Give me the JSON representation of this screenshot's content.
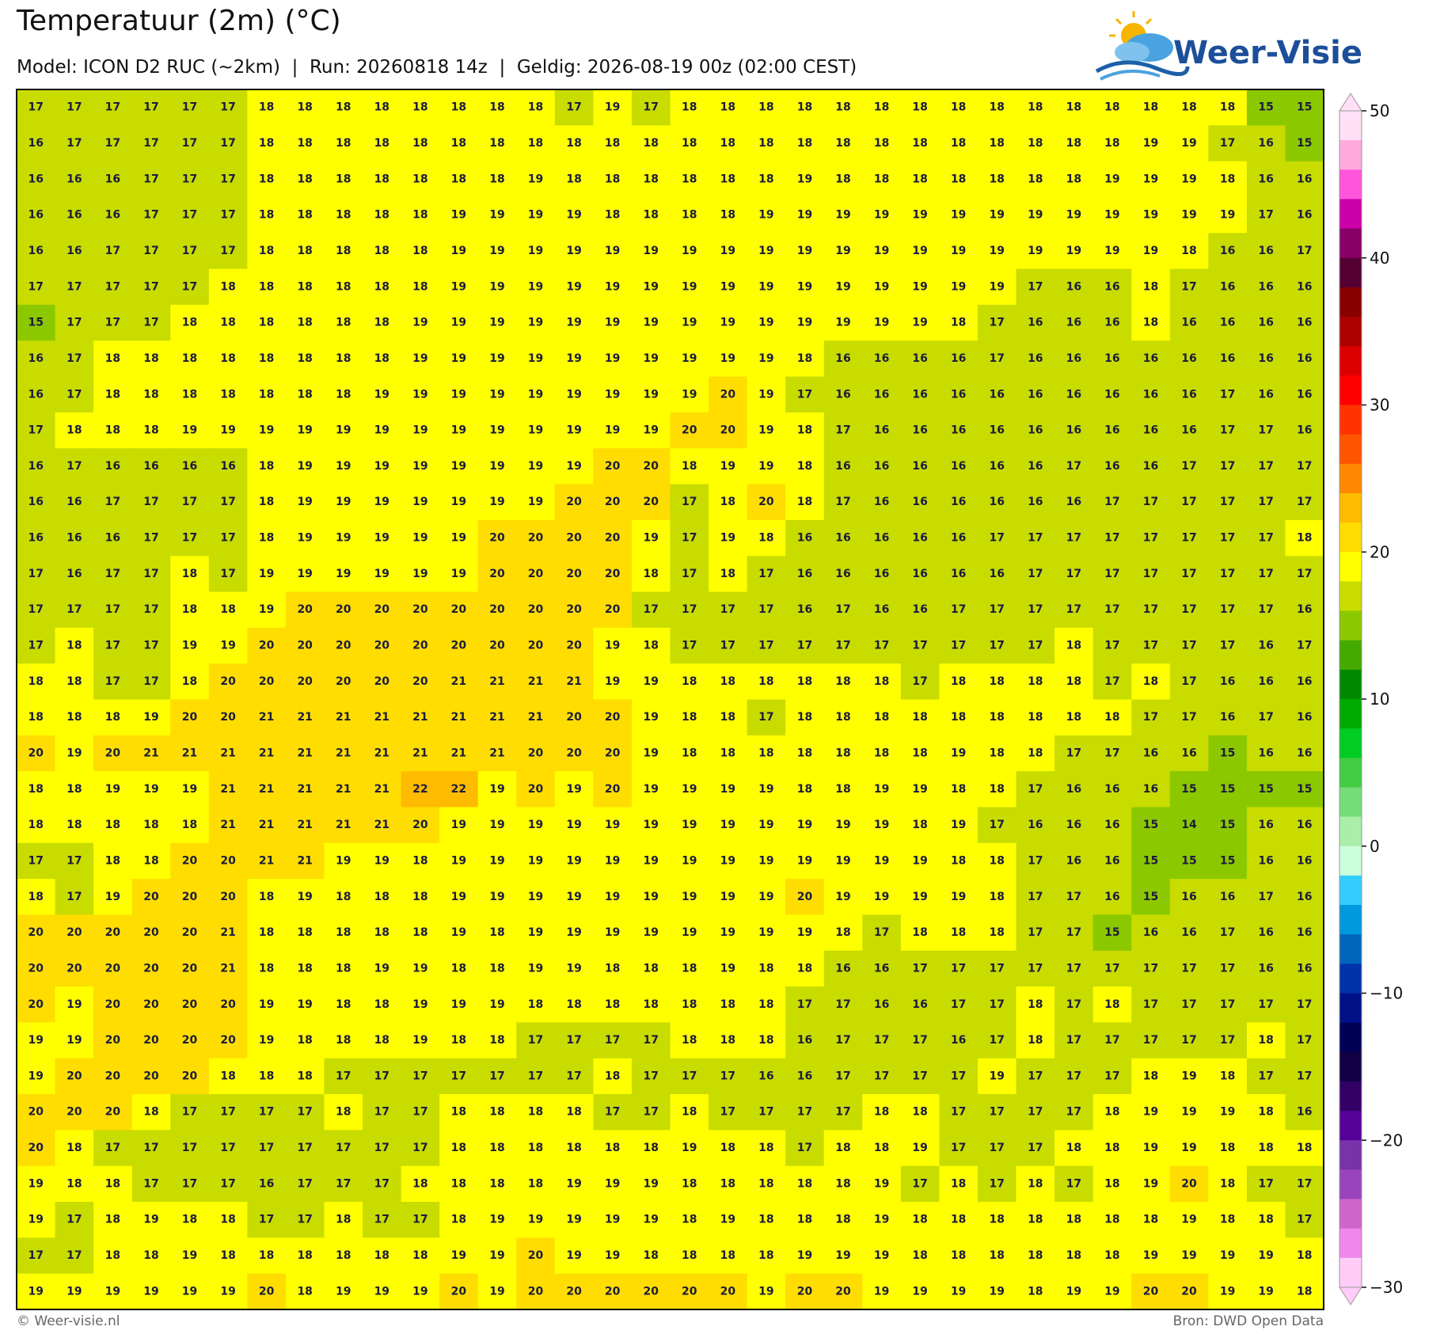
{
  "header": {
    "title": "Temperatuur (2m) (°C)",
    "subtitle": "Model: ICON D2 RUC (~2km)  |  Run: 20260818 14z  |  Geldig: 2026-08-19 00z (02:00 CEST)"
  },
  "logo": {
    "text": "Weer-Visie"
  },
  "grid": {
    "rows": [
      [
        17,
        17,
        17,
        17,
        17,
        17,
        18,
        18,
        18,
        18,
        18,
        18,
        18,
        18,
        17,
        19,
        17,
        18,
        18,
        18,
        18,
        18,
        18,
        18,
        18,
        18,
        18,
        18,
        18,
        18,
        18,
        18,
        15,
        15
      ],
      [
        16,
        17,
        17,
        17,
        17,
        17,
        18,
        18,
        18,
        18,
        18,
        18,
        18,
        18,
        18,
        18,
        18,
        18,
        18,
        18,
        18,
        18,
        18,
        18,
        18,
        18,
        18,
        18,
        18,
        19,
        19,
        17,
        16,
        15
      ],
      [
        16,
        16,
        16,
        17,
        17,
        17,
        18,
        18,
        18,
        18,
        18,
        18,
        18,
        19,
        18,
        18,
        18,
        18,
        18,
        18,
        19,
        18,
        18,
        18,
        18,
        18,
        18,
        18,
        19,
        19,
        19,
        18,
        16,
        16
      ],
      [
        16,
        16,
        16,
        17,
        17,
        17,
        18,
        18,
        18,
        18,
        18,
        19,
        19,
        19,
        19,
        18,
        18,
        18,
        18,
        19,
        19,
        19,
        19,
        19,
        19,
        19,
        19,
        19,
        19,
        19,
        19,
        19,
        17,
        16
      ],
      [
        16,
        16,
        17,
        17,
        17,
        17,
        18,
        18,
        18,
        18,
        18,
        19,
        19,
        19,
        19,
        19,
        19,
        19,
        19,
        19,
        19,
        19,
        19,
        19,
        19,
        19,
        19,
        19,
        19,
        19,
        18,
        16,
        16,
        17
      ],
      [
        17,
        17,
        17,
        17,
        17,
        18,
        18,
        18,
        18,
        18,
        18,
        19,
        19,
        19,
        19,
        19,
        19,
        19,
        19,
        19,
        19,
        19,
        19,
        19,
        19,
        19,
        17,
        16,
        16,
        18,
        17,
        16,
        16,
        16
      ],
      [
        15,
        17,
        17,
        17,
        18,
        18,
        18,
        18,
        18,
        18,
        19,
        19,
        19,
        19,
        19,
        19,
        19,
        19,
        19,
        19,
        19,
        19,
        19,
        19,
        18,
        17,
        16,
        16,
        16,
        18,
        16,
        16,
        16,
        16
      ],
      [
        16,
        17,
        18,
        18,
        18,
        18,
        18,
        18,
        18,
        18,
        19,
        19,
        19,
        19,
        19,
        19,
        19,
        19,
        19,
        19,
        18,
        16,
        16,
        16,
        16,
        17,
        16,
        16,
        16,
        16,
        16,
        16,
        16,
        16
      ],
      [
        16,
        17,
        18,
        18,
        18,
        18,
        18,
        18,
        18,
        19,
        19,
        19,
        19,
        19,
        19,
        19,
        19,
        19,
        20,
        19,
        17,
        16,
        16,
        16,
        16,
        16,
        16,
        16,
        16,
        16,
        16,
        17,
        16,
        16
      ],
      [
        17,
        18,
        18,
        18,
        19,
        19,
        19,
        19,
        19,
        19,
        19,
        19,
        19,
        19,
        19,
        19,
        19,
        20,
        20,
        19,
        18,
        17,
        16,
        16,
        16,
        16,
        16,
        16,
        16,
        16,
        16,
        17,
        17,
        16
      ],
      [
        16,
        17,
        16,
        16,
        16,
        16,
        18,
        19,
        19,
        19,
        19,
        19,
        19,
        19,
        19,
        20,
        20,
        18,
        19,
        19,
        18,
        16,
        16,
        16,
        16,
        16,
        16,
        17,
        16,
        16,
        17,
        17,
        17,
        17
      ],
      [
        16,
        16,
        17,
        17,
        17,
        17,
        18,
        19,
        19,
        19,
        19,
        19,
        19,
        19,
        20,
        20,
        20,
        17,
        18,
        20,
        18,
        17,
        16,
        16,
        16,
        16,
        16,
        16,
        17,
        17,
        17,
        17,
        17,
        17
      ],
      [
        16,
        16,
        16,
        17,
        17,
        17,
        18,
        19,
        19,
        19,
        19,
        19,
        20,
        20,
        20,
        20,
        19,
        17,
        19,
        18,
        16,
        16,
        16,
        16,
        16,
        17,
        17,
        17,
        17,
        17,
        17,
        17,
        17,
        18
      ],
      [
        17,
        16,
        17,
        17,
        18,
        17,
        19,
        19,
        19,
        19,
        19,
        19,
        20,
        20,
        20,
        20,
        18,
        17,
        18,
        17,
        16,
        16,
        16,
        16,
        16,
        16,
        17,
        17,
        17,
        17,
        17,
        17,
        17,
        17
      ],
      [
        17,
        17,
        17,
        17,
        18,
        18,
        19,
        20,
        20,
        20,
        20,
        20,
        20,
        20,
        20,
        20,
        17,
        17,
        17,
        17,
        16,
        17,
        16,
        16,
        17,
        17,
        17,
        17,
        17,
        17,
        17,
        17,
        17,
        16
      ],
      [
        17,
        18,
        17,
        17,
        19,
        19,
        20,
        20,
        20,
        20,
        20,
        20,
        20,
        20,
        20,
        19,
        18,
        17,
        17,
        17,
        17,
        17,
        17,
        17,
        17,
        17,
        17,
        18,
        17,
        17,
        17,
        17,
        16,
        17
      ],
      [
        18,
        18,
        17,
        17,
        18,
        20,
        20,
        20,
        20,
        20,
        20,
        21,
        21,
        21,
        21,
        19,
        19,
        18,
        18,
        18,
        18,
        18,
        18,
        17,
        18,
        18,
        18,
        18,
        17,
        18,
        17,
        16,
        16,
        16
      ],
      [
        18,
        18,
        18,
        19,
        20,
        20,
        21,
        21,
        21,
        21,
        21,
        21,
        21,
        21,
        20,
        20,
        19,
        18,
        18,
        17,
        18,
        18,
        18,
        18,
        18,
        18,
        18,
        18,
        18,
        17,
        17,
        16,
        17,
        16
      ],
      [
        20,
        19,
        20,
        21,
        21,
        21,
        21,
        21,
        21,
        21,
        21,
        21,
        21,
        20,
        20,
        20,
        19,
        18,
        18,
        18,
        18,
        18,
        18,
        18,
        19,
        18,
        18,
        17,
        17,
        16,
        16,
        15,
        16,
        16
      ],
      [
        18,
        18,
        19,
        19,
        19,
        21,
        21,
        21,
        21,
        21,
        22,
        22,
        19,
        20,
        19,
        20,
        19,
        19,
        19,
        19,
        18,
        18,
        19,
        19,
        18,
        18,
        17,
        16,
        16,
        16,
        15,
        15,
        15,
        15
      ],
      [
        18,
        18,
        18,
        18,
        18,
        21,
        21,
        21,
        21,
        21,
        20,
        19,
        19,
        19,
        19,
        19,
        19,
        19,
        19,
        19,
        19,
        19,
        19,
        18,
        19,
        17,
        16,
        16,
        16,
        15,
        14,
        15,
        16,
        16
      ],
      [
        17,
        17,
        18,
        18,
        20,
        20,
        21,
        21,
        19,
        19,
        18,
        19,
        19,
        19,
        19,
        19,
        19,
        19,
        19,
        19,
        19,
        19,
        19,
        19,
        18,
        18,
        17,
        16,
        16,
        15,
        15,
        15,
        16,
        16
      ],
      [
        18,
        17,
        19,
        20,
        20,
        20,
        18,
        19,
        18,
        18,
        18,
        19,
        19,
        19,
        19,
        19,
        19,
        19,
        19,
        19,
        20,
        19,
        19,
        19,
        19,
        18,
        17,
        17,
        16,
        15,
        16,
        16,
        17,
        16
      ],
      [
        20,
        20,
        20,
        20,
        20,
        21,
        18,
        18,
        18,
        18,
        18,
        19,
        18,
        19,
        19,
        19,
        19,
        19,
        19,
        19,
        19,
        18,
        17,
        18,
        18,
        18,
        17,
        17,
        15,
        16,
        16,
        17,
        16,
        16
      ],
      [
        20,
        20,
        20,
        20,
        20,
        21,
        18,
        18,
        18,
        19,
        19,
        18,
        18,
        19,
        19,
        18,
        18,
        18,
        19,
        18,
        18,
        16,
        16,
        17,
        17,
        17,
        17,
        17,
        17,
        17,
        17,
        17,
        16,
        16
      ],
      [
        20,
        19,
        20,
        20,
        20,
        20,
        19,
        19,
        18,
        18,
        19,
        19,
        19,
        18,
        18,
        18,
        18,
        18,
        18,
        18,
        17,
        17,
        16,
        16,
        17,
        17,
        18,
        17,
        18,
        17,
        17,
        17,
        17,
        17
      ],
      [
        19,
        19,
        20,
        20,
        20,
        20,
        19,
        18,
        18,
        18,
        19,
        18,
        18,
        17,
        17,
        17,
        17,
        18,
        18,
        18,
        16,
        17,
        17,
        17,
        16,
        17,
        18,
        17,
        17,
        17,
        17,
        17,
        18,
        17
      ],
      [
        19,
        20,
        20,
        20,
        20,
        18,
        18,
        18,
        17,
        17,
        17,
        17,
        17,
        17,
        17,
        18,
        17,
        17,
        17,
        16,
        16,
        17,
        17,
        17,
        17,
        19,
        17,
        17,
        17,
        18,
        19,
        18,
        17,
        17
      ],
      [
        20,
        20,
        20,
        18,
        17,
        17,
        17,
        17,
        18,
        17,
        17,
        18,
        18,
        18,
        18,
        17,
        17,
        18,
        17,
        17,
        17,
        17,
        18,
        18,
        17,
        17,
        17,
        17,
        18,
        19,
        19,
        19,
        18,
        16
      ],
      [
        20,
        18,
        17,
        17,
        17,
        17,
        17,
        17,
        17,
        17,
        17,
        18,
        18,
        18,
        18,
        18,
        18,
        19,
        18,
        18,
        17,
        18,
        18,
        19,
        17,
        17,
        17,
        18,
        18,
        19,
        19,
        18,
        18,
        18
      ],
      [
        19,
        18,
        18,
        17,
        17,
        17,
        16,
        17,
        17,
        17,
        18,
        18,
        18,
        18,
        19,
        19,
        19,
        18,
        18,
        18,
        18,
        18,
        19,
        17,
        18,
        17,
        18,
        17,
        18,
        19,
        20,
        18,
        17,
        17
      ],
      [
        19,
        17,
        18,
        19,
        18,
        18,
        17,
        17,
        18,
        17,
        17,
        18,
        19,
        19,
        19,
        19,
        19,
        18,
        19,
        18,
        18,
        18,
        19,
        18,
        18,
        18,
        18,
        18,
        18,
        18,
        19,
        18,
        18,
        17
      ],
      [
        17,
        17,
        18,
        18,
        19,
        18,
        18,
        18,
        18,
        18,
        18,
        19,
        19,
        20,
        19,
        19,
        18,
        18,
        18,
        18,
        19,
        19,
        19,
        18,
        18,
        18,
        18,
        18,
        18,
        19,
        19,
        19,
        19,
        18
      ],
      [
        19,
        19,
        19,
        19,
        19,
        19,
        20,
        18,
        19,
        19,
        19,
        20,
        19,
        20,
        20,
        20,
        20,
        20,
        20,
        19,
        20,
        20,
        19,
        19,
        19,
        19,
        18,
        19,
        19,
        20,
        20,
        19,
        19,
        18
      ]
    ]
  },
  "colorbar": {
    "range": [
      -30,
      50
    ],
    "colors": [
      "#ffe0f6",
      "#ffaadd",
      "#ff55dd",
      "#cc00aa",
      "#880066",
      "#550033",
      "#880000",
      "#aa0000",
      "#dd0000",
      "#ff0000",
      "#ff3300",
      "#ff5500",
      "#ff8800",
      "#ffbb00",
      "#ffdd00",
      "#ffff00",
      "#c8dc00",
      "#8cc800",
      "#44aa00",
      "#008800",
      "#00aa00",
      "#00cc22",
      "#44cc44",
      "#77dd77",
      "#aaeeaa",
      "#ccffdd",
      "#33ccff",
      "#0099dd",
      "#0066bb",
      "#0033aa",
      "#001188",
      "#000055",
      "#110044",
      "#330066",
      "#550099",
      "#7733aa",
      "#9944bb",
      "#cc66cc",
      "#ee88ee",
      "#ffccf8"
    ],
    "ticks": [
      50,
      40,
      30,
      20,
      10,
      0,
      {
        "value": -10,
        "label": "−10"
      },
      {
        "value": -20,
        "label": "−20"
      },
      {
        "value": -30,
        "label": "−30"
      }
    ]
  },
  "footer": {
    "left": "© Weer-visie.nl",
    "right": "Bron: DWD Open Data"
  }
}
